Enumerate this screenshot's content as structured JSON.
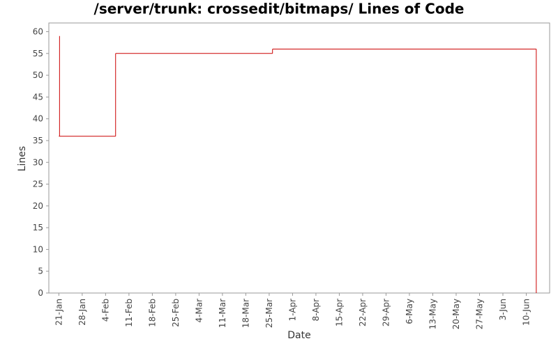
{
  "chart_data": {
    "type": "step",
    "title": "/server/trunk: crossedit/bitmaps/ Lines of Code",
    "x_label": "Date",
    "y_label": "Lines",
    "x": [
      "21-Jan",
      "21-Jan",
      "7-Feb",
      "26-Mar",
      "13-Jun"
    ],
    "series": [
      {
        "name": "Lines",
        "color": "#cc0000",
        "values": [
          59,
          36,
          55,
          56,
          0
        ]
      }
    ],
    "xlim": [
      "18-Jan",
      "17-Jun"
    ],
    "xticks": [
      "21-Jan",
      "28-Jan",
      "4-Feb",
      "11-Feb",
      "18-Feb",
      "25-Feb",
      "4-Mar",
      "11-Mar",
      "18-Mar",
      "25-Mar",
      "1-Apr",
      "8-Apr",
      "15-Apr",
      "22-Apr",
      "29-Apr",
      "6-May",
      "13-May",
      "20-May",
      "27-May",
      "3-Jun",
      "10-Jun"
    ],
    "ylim": [
      0,
      62
    ],
    "yticks": [
      0,
      5,
      10,
      15,
      20,
      25,
      30,
      35,
      40,
      45,
      50,
      55,
      60
    ]
  }
}
